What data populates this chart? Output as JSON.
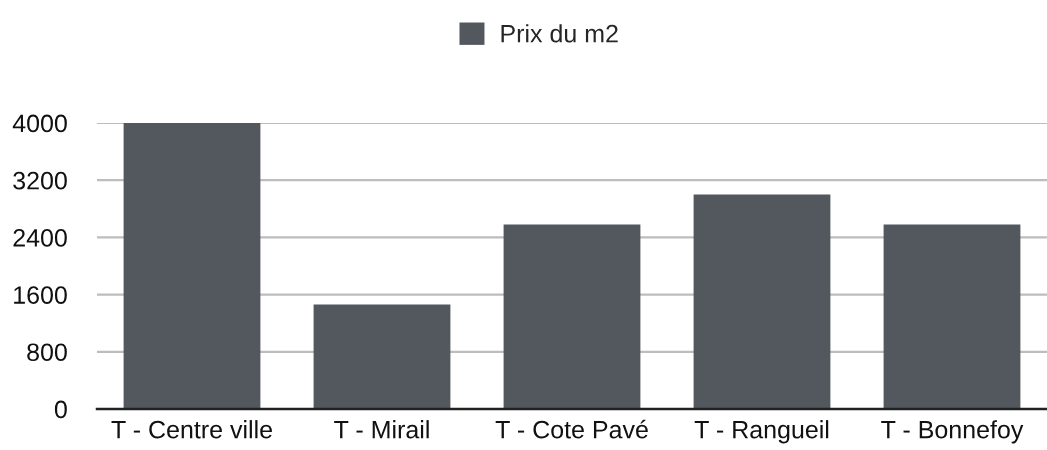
{
  "chart_data": {
    "type": "bar",
    "categories": [
      "T - Centre ville",
      "T - Mirail",
      "T - Cote Pavé",
      "T - Rangueil",
      "T - Bonnefoy"
    ],
    "series": [
      {
        "name": "Prix du m2",
        "color": "#53575e",
        "values": [
          4000,
          1460,
          2580,
          3000,
          2580
        ]
      }
    ],
    "ylim": [
      0,
      4000
    ],
    "yticks": [
      0,
      800,
      1600,
      2400,
      3200,
      4000
    ],
    "grid": "y",
    "legend": "top"
  }
}
